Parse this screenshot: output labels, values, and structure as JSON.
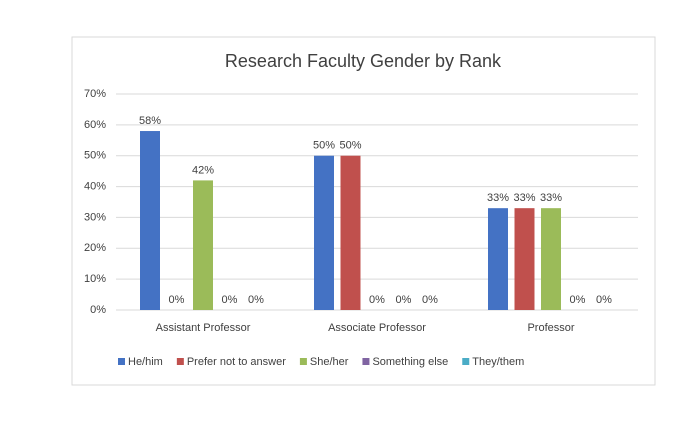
{
  "chart_data": {
    "type": "bar",
    "title": "Research Faculty Gender by Rank",
    "categories": [
      "Assistant Professor",
      "Associate Professor",
      "Professor"
    ],
    "series": [
      {
        "name": "He/him",
        "color": "#4472c4",
        "values": [
          58,
          50,
          33
        ],
        "value_labels": [
          "58%",
          "50%",
          "33%"
        ]
      },
      {
        "name": "Prefer not to answer",
        "color": "#c0504d",
        "values": [
          0,
          50,
          33
        ],
        "value_labels": [
          "0%",
          "50%",
          "33%"
        ]
      },
      {
        "name": "She/her",
        "color": "#9bbb59",
        "values": [
          42,
          0,
          33
        ],
        "value_labels": [
          "42%",
          "0%",
          "33%"
        ]
      },
      {
        "name": "Something else",
        "color": "#8064a2",
        "values": [
          0,
          0,
          0
        ],
        "value_labels": [
          "0%",
          "0%",
          "0%"
        ]
      },
      {
        "name": "They/them",
        "color": "#4bacc6",
        "values": [
          0,
          0,
          0
        ],
        "value_labels": [
          "0%",
          "0%",
          "0%"
        ]
      }
    ],
    "ylim": [
      0,
      70
    ],
    "yticks": [
      {
        "value": 0,
        "label": "0%"
      },
      {
        "value": 10,
        "label": "10%"
      },
      {
        "value": 20,
        "label": "20%"
      },
      {
        "value": 30,
        "label": "30%"
      },
      {
        "value": 40,
        "label": "40%"
      },
      {
        "value": 50,
        "label": "50%"
      },
      {
        "value": 60,
        "label": "60%"
      },
      {
        "value": 70,
        "label": "70%"
      }
    ],
    "grid": true,
    "legend": "bottom"
  }
}
